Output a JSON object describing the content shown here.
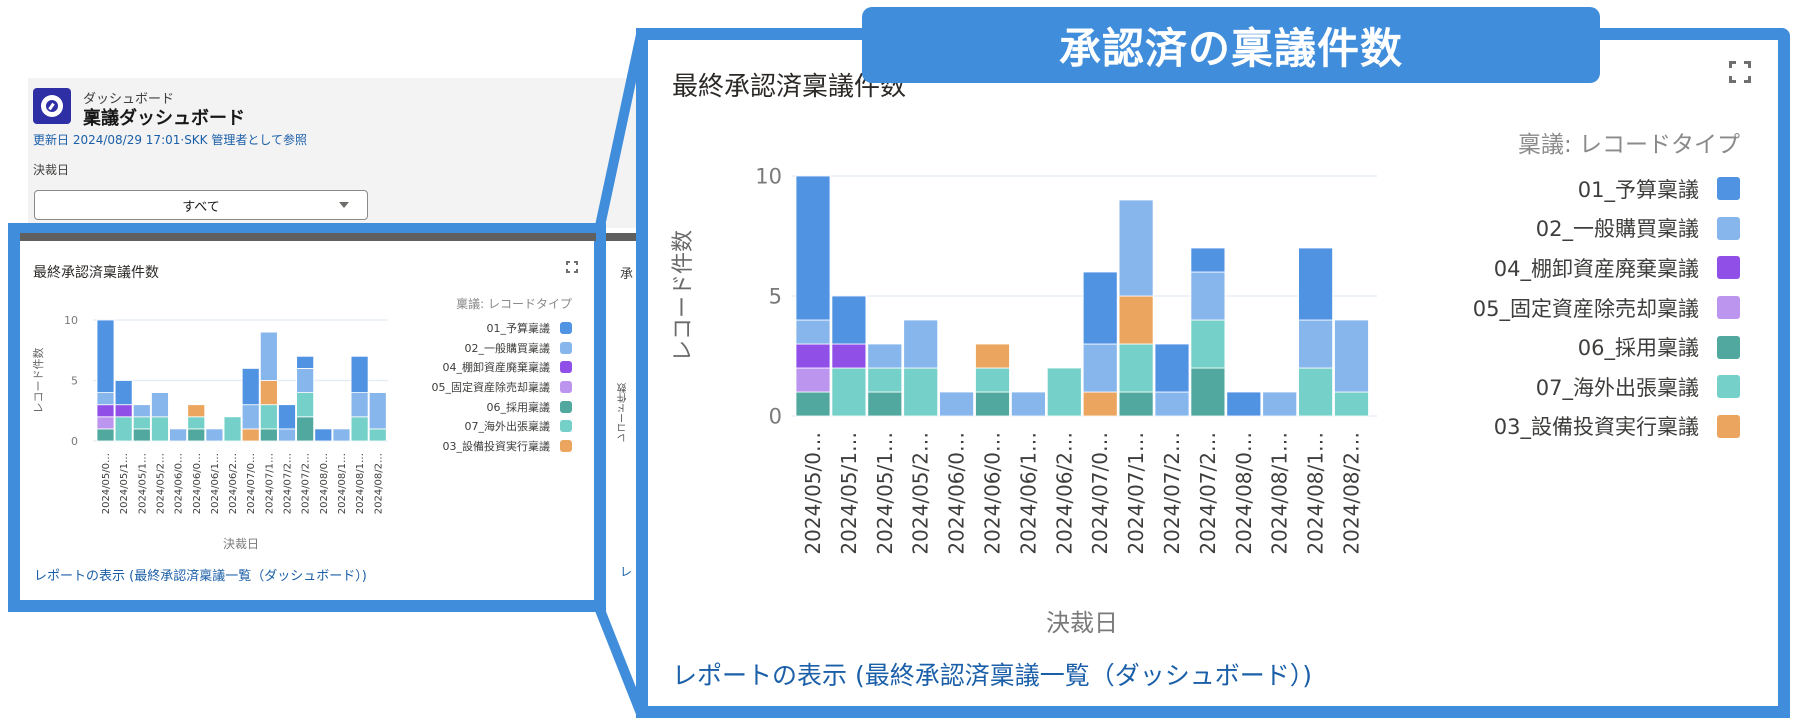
{
  "dashboard": {
    "object_label": "ダッシュボード",
    "title": "稟議ダッシュボード",
    "meta": "更新日 2024/08/29 17:01·SKK 管理者として参照",
    "filter": {
      "label": "決裁日",
      "value": "すべて"
    }
  },
  "banner": {
    "text": "承認済の稟議件数"
  },
  "panel": {
    "title": "最終承認済稟議件数",
    "legend_title": "稟議: レコードタイプ",
    "report_link": "レポートの表示 (最終承認済稟議一覧（ダッシュボード）)",
    "second_panel_title_fragment": "承",
    "second_panel_link_fragment": "レ"
  },
  "colors": {
    "frame": "#3f8ddb",
    "link": "#1b5fa8"
  },
  "chart_data": {
    "type": "bar",
    "stacked": true,
    "title": "最終承認済稟議件数",
    "xlabel": "決裁日",
    "ylabel": "レコード件数",
    "ylim": [
      0,
      10
    ],
    "yticks": [
      0,
      5,
      10
    ],
    "grid": true,
    "legend_position": "right",
    "legend_title": "稟議: レコードタイプ",
    "categories": [
      "2024/05/0…",
      "2024/05/1…",
      "2024/05/1…",
      "2024/05/2…",
      "2024/06/0…",
      "2024/06/0…",
      "2024/06/1…",
      "2024/06/2…",
      "2024/07/0…",
      "2024/07/1…",
      "2024/07/2…",
      "2024/07/2…",
      "2024/08/0…",
      "2024/08/1…",
      "2024/08/1…",
      "2024/08/2…"
    ],
    "series": [
      {
        "name": "01_予算稟議",
        "color": "#4f93e2",
        "values": [
          6,
          2,
          0,
          0,
          0,
          0,
          0,
          0,
          3,
          0,
          2,
          1,
          1,
          0,
          3,
          0
        ]
      },
      {
        "name": "02_一般購買稟議",
        "color": "#86b6ec",
        "values": [
          1,
          0,
          1,
          2,
          1,
          0,
          1,
          0,
          2,
          4,
          1,
          2,
          0,
          1,
          2,
          3
        ]
      },
      {
        "name": "04_棚卸資産廃棄稟議",
        "color": "#9050e8",
        "values": [
          1,
          1,
          0,
          0,
          0,
          0,
          0,
          0,
          0,
          0,
          0,
          0,
          0,
          0,
          0,
          0
        ]
      },
      {
        "name": "05_固定資産除売却稟議",
        "color": "#bc96ee",
        "values": [
          1,
          0,
          0,
          0,
          0,
          0,
          0,
          0,
          0,
          0,
          0,
          0,
          0,
          0,
          0,
          0
        ]
      },
      {
        "name": "06_採用稟議",
        "color": "#50a89e",
        "values": [
          1,
          0,
          1,
          0,
          0,
          1,
          0,
          0,
          0,
          1,
          0,
          2,
          0,
          0,
          0,
          0
        ]
      },
      {
        "name": "07_海外出張稟議",
        "color": "#74d0c9",
        "values": [
          0,
          2,
          1,
          2,
          0,
          1,
          0,
          2,
          0,
          2,
          0,
          2,
          0,
          0,
          2,
          1
        ]
      },
      {
        "name": "03_設備投資実行稟議",
        "color": "#eba55e",
        "values": [
          0,
          0,
          0,
          0,
          0,
          1,
          0,
          0,
          1,
          2,
          0,
          0,
          0,
          0,
          0,
          0
        ]
      }
    ],
    "stack_order_bottom_to_top": [
      "06_採用稟議",
      "05_固定資産除売却稟議",
      "07_海外出張稟議",
      "04_棚卸資産廃棄稟議",
      "03_設備投資実行稟議",
      "02_一般購買稟議",
      "01_予算稟議"
    ],
    "totals": [
      10,
      5,
      3,
      4,
      1,
      3,
      1,
      2,
      6,
      9,
      3,
      7,
      1,
      1,
      7,
      4
    ]
  }
}
